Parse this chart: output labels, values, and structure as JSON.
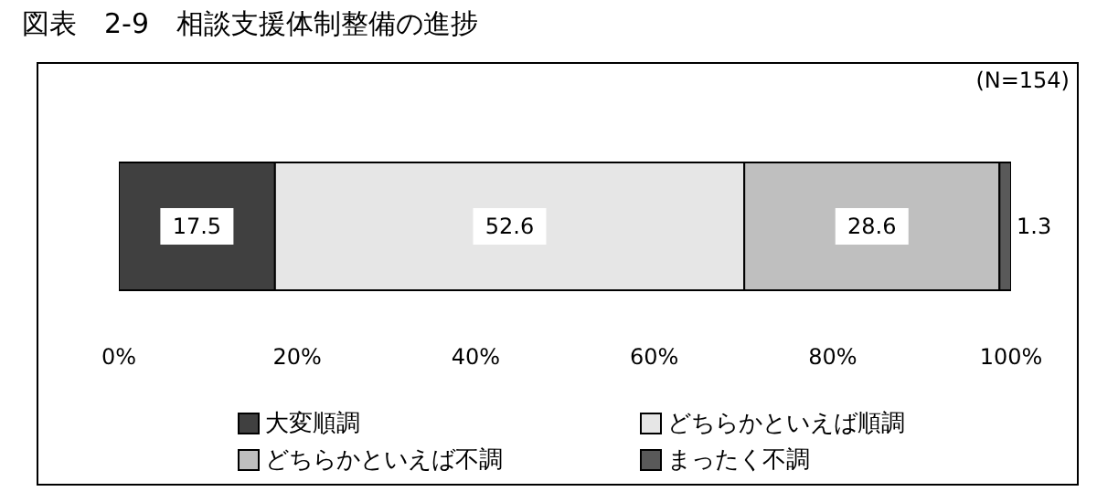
{
  "chart_data": {
    "type": "bar",
    "title": "図表　2-9　相談支援体制整備の進捗",
    "annotations": [
      "(N=154)"
    ],
    "orientation": "horizontal",
    "stacked": true,
    "categories": [
      null
    ],
    "series": [
      {
        "name": "大変順調",
        "color": "#404040",
        "values": [
          17.5
        ]
      },
      {
        "name": "どちらかといえば順調",
        "color": "#e6e6e6",
        "values": [
          52.6
        ]
      },
      {
        "name": "どちらかといえば不調",
        "color": "#bfbfbf",
        "values": [
          28.6
        ]
      },
      {
        "name": "まったく不調",
        "color": "#595959",
        "values": [
          1.3
        ]
      }
    ],
    "xlim": [
      0,
      100
    ],
    "xticks": [
      {
        "value": 0,
        "label": "0%"
      },
      {
        "value": 20,
        "label": "20%"
      },
      {
        "value": 40,
        "label": "40%"
      },
      {
        "value": 60,
        "label": "60%"
      },
      {
        "value": 80,
        "label": "80%"
      },
      {
        "value": 100,
        "label": "100%"
      }
    ],
    "data_labels": true,
    "grid": false,
    "legend": "bottom"
  }
}
